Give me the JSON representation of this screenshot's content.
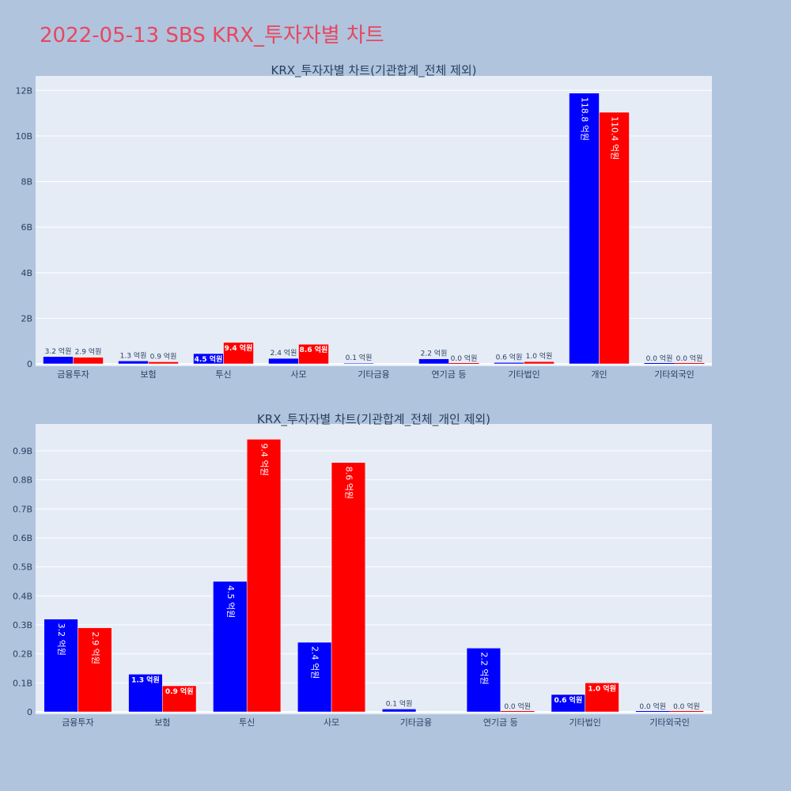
{
  "page": {
    "title": "2022-05-13 SBS KRX_투자자별 차트"
  },
  "colors": {
    "buy": "#0000ff",
    "sell": "#ff0000",
    "plot_bg": "#e5ecf6",
    "page_bg": "#b0c4de",
    "title": "#e8475f",
    "text": "#2a3f5f"
  },
  "chart_data": [
    {
      "type": "bar",
      "title": "KRX_투자자별 차트(기관합계_전체 제외)",
      "categories": [
        "금융투자",
        "보험",
        "투신",
        "사모",
        "기타금융",
        "연기금 등",
        "기타법인",
        "개인",
        "기타외국인"
      ],
      "yticks": [
        "0",
        "2B",
        "4B",
        "6B",
        "8B",
        "10B",
        "12B"
      ],
      "ylim": [
        0,
        12.6
      ],
      "grid": true,
      "series": [
        {
          "values": [
            0.32,
            0.13,
            0.45,
            0.24,
            0.01,
            0.22,
            0.06,
            11.88,
            0.0
          ],
          "labels": [
            "3.2 억원",
            "1.3 억원",
            "4.5 억원",
            "2.4 억원",
            "0.1 억원",
            "2.2 억원",
            "0.6 억원",
            "118.8 억원",
            "0.0 억원"
          ]
        },
        {
          "values": [
            0.29,
            0.09,
            0.94,
            0.86,
            0.0,
            0.0,
            0.1,
            11.04,
            0.0
          ],
          "labels": [
            "2.9 억원",
            "0.9 억원",
            "9.4 억원",
            "8.6 억원",
            "",
            "0.0 억원",
            "1.0 억원",
            "110.4 억원",
            "0.0 억원"
          ]
        }
      ]
    },
    {
      "type": "bar",
      "title": "KRX_투자자별 차트(기관합계_전체_개인 제외)",
      "categories": [
        "금융투자",
        "보험",
        "투신",
        "사모",
        "기타금융",
        "연기금 등",
        "기타법인",
        "기타외국인"
      ],
      "yticks": [
        "0",
        "0.1B",
        "0.2B",
        "0.3B",
        "0.4B",
        "0.5B",
        "0.6B",
        "0.7B",
        "0.8B",
        "0.9B"
      ],
      "ylim": [
        0,
        0.99
      ],
      "grid": true,
      "series": [
        {
          "values": [
            0.32,
            0.13,
            0.45,
            0.24,
            0.01,
            0.22,
            0.06,
            0.0
          ],
          "labels": [
            "3.2 억원",
            "1.3 억원",
            "4.5 억원",
            "2.4 억원",
            "0.1 억원",
            "2.2 억원",
            "0.6 억원",
            "0.0 억원"
          ]
        },
        {
          "values": [
            0.29,
            0.09,
            0.94,
            0.86,
            0.0,
            0.0,
            0.1,
            0.0
          ],
          "labels": [
            "2.9 억원",
            "0.9 억원",
            "9.4 억원",
            "8.6 억원",
            "",
            "0.0 억원",
            "1.0 억원",
            "0.0 억원"
          ]
        }
      ]
    }
  ]
}
